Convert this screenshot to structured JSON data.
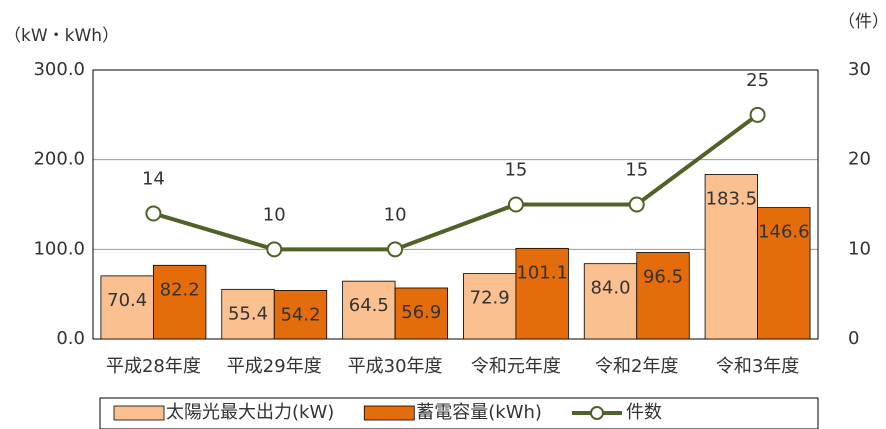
{
  "chart_data": {
    "type": "bar",
    "y_label": "（kW・kWh）",
    "y2_label": "（件）",
    "categories": [
      "平成28年度",
      "平成29年度",
      "平成30年度",
      "令和元年度",
      "令和2年度",
      "令和3年度"
    ],
    "series": [
      {
        "name": "太陽光最大出力(kW)",
        "color": "#fac090",
        "values": [
          70.4,
          55.4,
          64.5,
          72.9,
          84.0,
          183.5
        ],
        "value_labels": [
          "70.4",
          "55.4",
          "64.5",
          "72.9",
          "84.0",
          "183.5"
        ]
      },
      {
        "name": "蓄電容量(kWh)",
        "color": "#e46c0a",
        "values": [
          82.2,
          54.2,
          56.9,
          101.1,
          96.5,
          146.6
        ]
      },
      {
        "name": "件数",
        "type": "line",
        "axis": "y2",
        "color": "#4f6228",
        "values": [
          14,
          10,
          10,
          15,
          15,
          25
        ]
      }
    ],
    "ylim": [
      0,
      300
    ],
    "yticks": [
      {
        "value": 0,
        "label": "0.0"
      },
      {
        "value": 100,
        "label": "100.0"
      },
      {
        "value": 200,
        "label": "200.0"
      },
      {
        "value": 300,
        "label": "300.0"
      }
    ],
    "y2lim": [
      0,
      30
    ],
    "y2ticks": [
      0,
      10,
      20,
      30
    ],
    "grid": true,
    "legend": "bottom"
  }
}
